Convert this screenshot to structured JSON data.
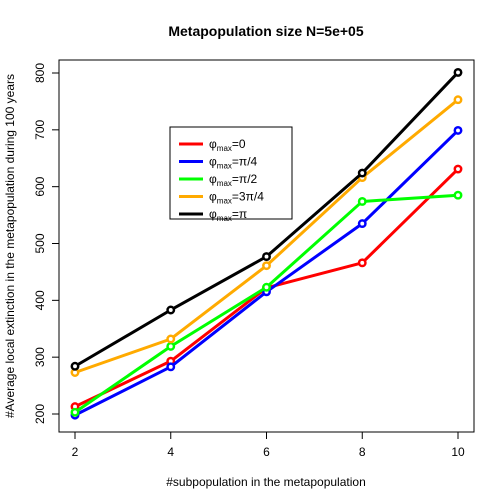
{
  "chart_data": {
    "type": "line",
    "title": "Metapopulation size N=5e+05",
    "xlabel": "#subpopulation in the metapopulation",
    "ylabel": "#Average local extinction in the metapopulation during 100 years",
    "x": [
      2,
      4,
      6,
      8,
      10
    ],
    "xticks": [
      "2",
      "4",
      "6",
      "8",
      "10"
    ],
    "yticks": [
      "200",
      "300",
      "400",
      "500",
      "600",
      "700",
      "800"
    ],
    "xlim": [
      2,
      10
    ],
    "ylim": [
      200,
      800
    ],
    "grid": false,
    "legend_position": "top-left",
    "series": [
      {
        "name": "φmax=0",
        "name_base": "φ",
        "name_sub": "max",
        "name_rest": "=0",
        "color": "#ff0000",
        "values": [
          213,
          293,
          422,
          466,
          631
        ]
      },
      {
        "name": "φmax=π/4",
        "name_base": "φ",
        "name_sub": "max",
        "name_rest": "=π/4",
        "color": "#0000ff",
        "values": [
          198,
          283,
          415,
          535,
          699
        ]
      },
      {
        "name": "φmax=π/2",
        "name_base": "φ",
        "name_sub": "max",
        "name_rest": "=π/2",
        "color": "#00ff00",
        "values": [
          203,
          319,
          423,
          574,
          585
        ]
      },
      {
        "name": "φmax=3π/4",
        "name_base": "φ",
        "name_sub": "max",
        "name_rest": "=3π/4",
        "color": "#ffaa00",
        "values": [
          273,
          332,
          461,
          616,
          753
        ]
      },
      {
        "name": "φmax=π",
        "name_base": "φ",
        "name_sub": "max",
        "name_rest": "=π",
        "color": "#000000",
        "values": [
          284,
          383,
          477,
          624,
          801
        ]
      }
    ]
  }
}
